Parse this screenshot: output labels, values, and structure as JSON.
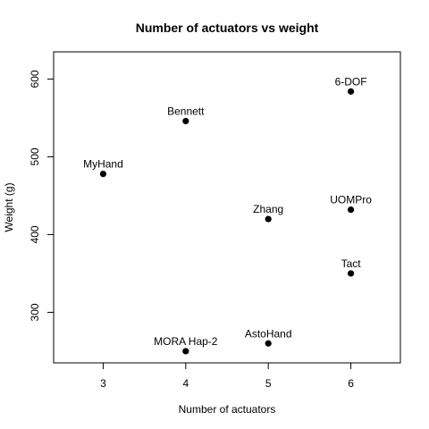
{
  "chart_data": {
    "type": "scatter",
    "title": "Number of actuators vs weight",
    "xlabel": "Number of actuators",
    "ylabel": "Weight (g)",
    "xlim": [
      2.4,
      6.6
    ],
    "ylim": [
      235,
      635
    ],
    "xticks": [
      3,
      4,
      5,
      6
    ],
    "yticks": [
      300,
      400,
      500,
      600
    ],
    "grid": false,
    "legend": "none",
    "point_color": "#000000",
    "points": [
      {
        "label": "MyHand",
        "x": 3,
        "y": 478
      },
      {
        "label": "Bennett",
        "x": 4,
        "y": 546
      },
      {
        "label": "MORA Hap-2",
        "x": 4,
        "y": 250
      },
      {
        "label": "Zhang",
        "x": 5,
        "y": 420
      },
      {
        "label": "AstoHand",
        "x": 5,
        "y": 260
      },
      {
        "label": "6-DOF",
        "x": 6,
        "y": 584
      },
      {
        "label": "UOMPro",
        "x": 6,
        "y": 432
      },
      {
        "label": "Tact",
        "x": 6,
        "y": 350
      }
    ]
  }
}
